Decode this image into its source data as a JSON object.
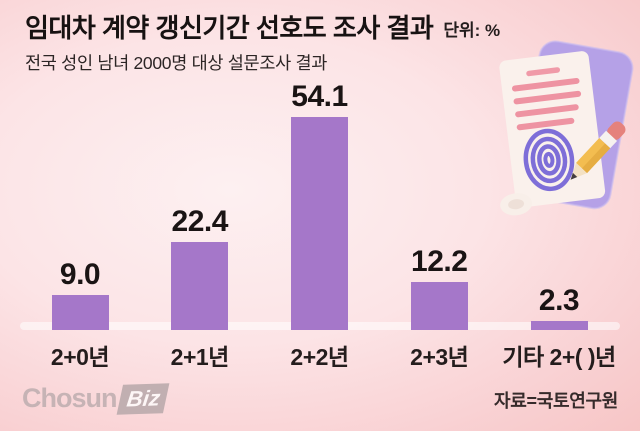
{
  "header": {
    "title": "임대차 계약 갱신기간 선호도 조사 결과",
    "unit": "단위: %",
    "subtitle": "전국 성인 남녀 2000명 대상 설문조사 결과"
  },
  "chart_data": {
    "type": "bar",
    "orientation": "vertical",
    "title": "임대차 계약 갱신기간 선호도 조사 결과",
    "subtitle": "전국 성인 남녀 2000명 대상 설문조사 결과",
    "unit": "%",
    "categories": [
      "2+0년",
      "2+1년",
      "2+2년",
      "2+3년",
      "기타 2+( )년"
    ],
    "values": [
      9.0,
      22.4,
      54.1,
      12.2,
      2.3
    ],
    "value_labels": [
      "9.0",
      "22.4",
      "54.1",
      "12.2",
      "2.3"
    ],
    "ylim": [
      0,
      60
    ],
    "grid": false,
    "legend": "none",
    "bar_color": "#a577c9",
    "baseline_color": "rgba(255,255,255,0.55)"
  },
  "footer": {
    "publisher": {
      "part1": "Chosun",
      "part2": "Biz"
    },
    "source": "자료=국토연구원"
  },
  "illustration": {
    "name": "contract-paper-with-fingerprint-and-pencil",
    "colors": {
      "clipboard": "#b5a1e7",
      "paper": "#faf1ec",
      "paper_lines": "#ee93a2",
      "fingerprint": "#7e6ed8",
      "pencil_body": "#f3bd50",
      "pencil_body_shade": "#e2a83e",
      "pencil_eraser": "#e5827c",
      "pencil_ferrule": "#f6f2ef",
      "pencil_wood": "#f4e1c3",
      "pencil_tip": "#433c3e"
    }
  }
}
